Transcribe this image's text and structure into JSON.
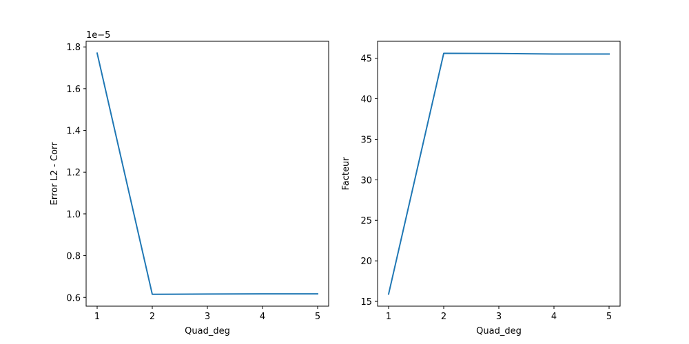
{
  "chart_data": [
    {
      "type": "line",
      "x": [
        1,
        2,
        3,
        4,
        5
      ],
      "y": [
        1.77e-05,
        6.15e-06,
        6.16e-06,
        6.17e-06,
        6.17e-06
      ],
      "xlabel": "Quad_deg",
      "ylabel": "Error L2 - Corr",
      "xticks": [
        1,
        2,
        3,
        4,
        5
      ],
      "xtick_labels": [
        "1",
        "2",
        "3",
        "4",
        "5"
      ],
      "yticks": [
        6e-06,
        8e-06,
        1e-05,
        1.2e-05,
        1.4e-05,
        1.6e-05,
        1.8e-05
      ],
      "ytick_labels": [
        "0.6",
        "0.8",
        "1.0",
        "1.2",
        "1.4",
        "1.6",
        "1.8"
      ],
      "offset_label": "1e−5",
      "xlim": [
        0.8,
        5.2
      ],
      "ylim": [
        5.58e-06,
        1.827e-05
      ],
      "grid": false,
      "color": "#1f77b4"
    },
    {
      "type": "line",
      "x": [
        1,
        2,
        3,
        4,
        5
      ],
      "y": [
        15.9,
        45.6,
        45.58,
        45.52,
        45.52
      ],
      "xlabel": "Quad_deg",
      "ylabel": "Facteur",
      "xticks": [
        1,
        2,
        3,
        4,
        5
      ],
      "xtick_labels": [
        "1",
        "2",
        "3",
        "4",
        "5"
      ],
      "yticks": [
        15,
        20,
        25,
        30,
        35,
        40,
        45
      ],
      "ytick_labels": [
        "15",
        "20",
        "25",
        "30",
        "35",
        "40",
        "45"
      ],
      "offset_label": "",
      "xlim": [
        0.8,
        5.2
      ],
      "ylim": [
        14.41,
        47.09
      ],
      "grid": false,
      "color": "#1f77b4"
    }
  ]
}
